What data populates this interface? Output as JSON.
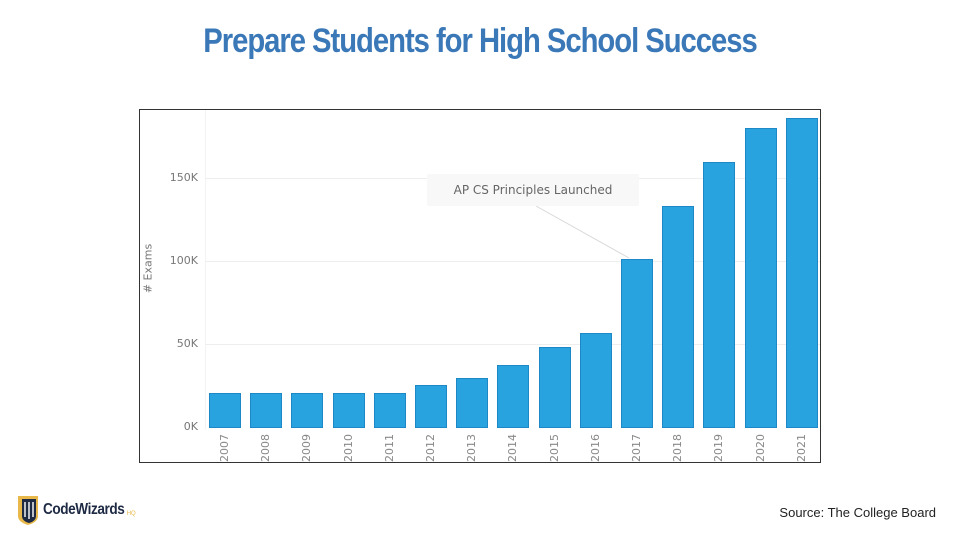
{
  "slide": {
    "title": "Prepare Students for High School Success",
    "source": "Source: The College Board",
    "logo": {
      "name": "CodeWizards",
      "suffix": "HQ"
    }
  },
  "colors": {
    "title": "#3a78b8",
    "bar_fill": "#29a3e0",
    "bar_edge": "#1e88c6",
    "logo_gold": "#e8b94a",
    "logo_navy": "#1e2a44"
  },
  "chart_data": {
    "type": "bar",
    "title": "",
    "xlabel": "",
    "ylabel": "# Exams",
    "categories": [
      "2007",
      "2008",
      "2009",
      "2010",
      "2011",
      "2012",
      "2013",
      "2014",
      "2015",
      "2016",
      "2017",
      "2018",
      "2019",
      "2020",
      "2021"
    ],
    "values": [
      21000,
      21000,
      21000,
      21000,
      21000,
      26000,
      30000,
      38000,
      49000,
      57000,
      102000,
      134000,
      160000,
      181000,
      187000
    ],
    "ylim": [
      0,
      190000
    ],
    "yticks": [
      0,
      50000,
      100000,
      150000
    ],
    "ytick_labels": [
      "0K",
      "50K",
      "100K",
      "150K"
    ],
    "grid": true,
    "legend": null,
    "annotations": [
      {
        "text": "AP CS Principles Launched",
        "target_category": "2017"
      }
    ]
  }
}
